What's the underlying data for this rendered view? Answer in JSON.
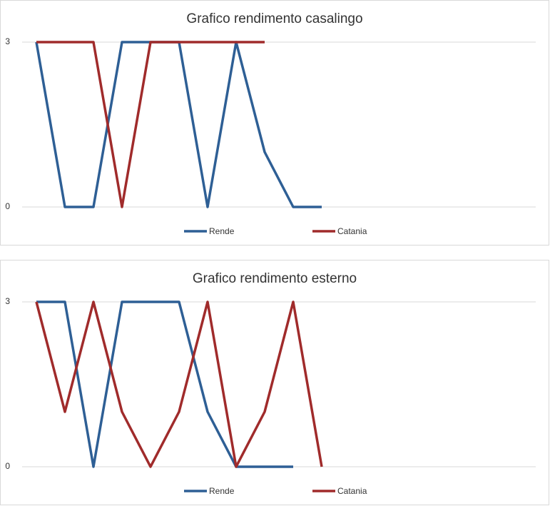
{
  "chart_data": [
    {
      "type": "line",
      "title": "Grafico rendimento casalingo",
      "categories": [
        null,
        null,
        null,
        null,
        null,
        null,
        null,
        null,
        null,
        null,
        null,
        null,
        null,
        null,
        null,
        null,
        null,
        null
      ],
      "series": [
        {
          "name": "Rende",
          "color": "#2e5f95",
          "values": [
            3,
            0,
            0,
            3,
            3,
            3,
            0,
            3,
            1,
            0,
            0,
            null,
            null,
            null,
            null,
            null,
            null,
            null
          ]
        },
        {
          "name": "Catania",
          "color": "#a02b2b",
          "values": [
            3,
            3,
            3,
            0,
            3,
            3,
            3,
            3,
            3,
            null,
            null,
            null,
            null,
            null,
            null,
            null,
            null,
            null
          ]
        }
      ],
      "ylim": [
        0,
        3
      ],
      "yticks": [
        0,
        3
      ],
      "grid": true,
      "legend": "bottom"
    },
    {
      "type": "line",
      "title": "Grafico rendimento esterno",
      "categories": [
        null,
        null,
        null,
        null,
        null,
        null,
        null,
        null,
        null,
        null,
        null,
        null,
        null,
        null,
        null,
        null,
        null,
        null
      ],
      "series": [
        {
          "name": "Rende",
          "color": "#2e5f95",
          "values": [
            3,
            3,
            0,
            3,
            3,
            3,
            1,
            0,
            0,
            0,
            null,
            null,
            null,
            null,
            null,
            null,
            null,
            null
          ]
        },
        {
          "name": "Catania",
          "color": "#a02b2b",
          "values": [
            3,
            1,
            3,
            1,
            0,
            1,
            3,
            0,
            1,
            3,
            0,
            null,
            null,
            null,
            null,
            null,
            null,
            null
          ]
        }
      ],
      "ylim": [
        0,
        3
      ],
      "yticks": [
        0,
        3
      ],
      "grid": true,
      "legend": "bottom"
    }
  ]
}
